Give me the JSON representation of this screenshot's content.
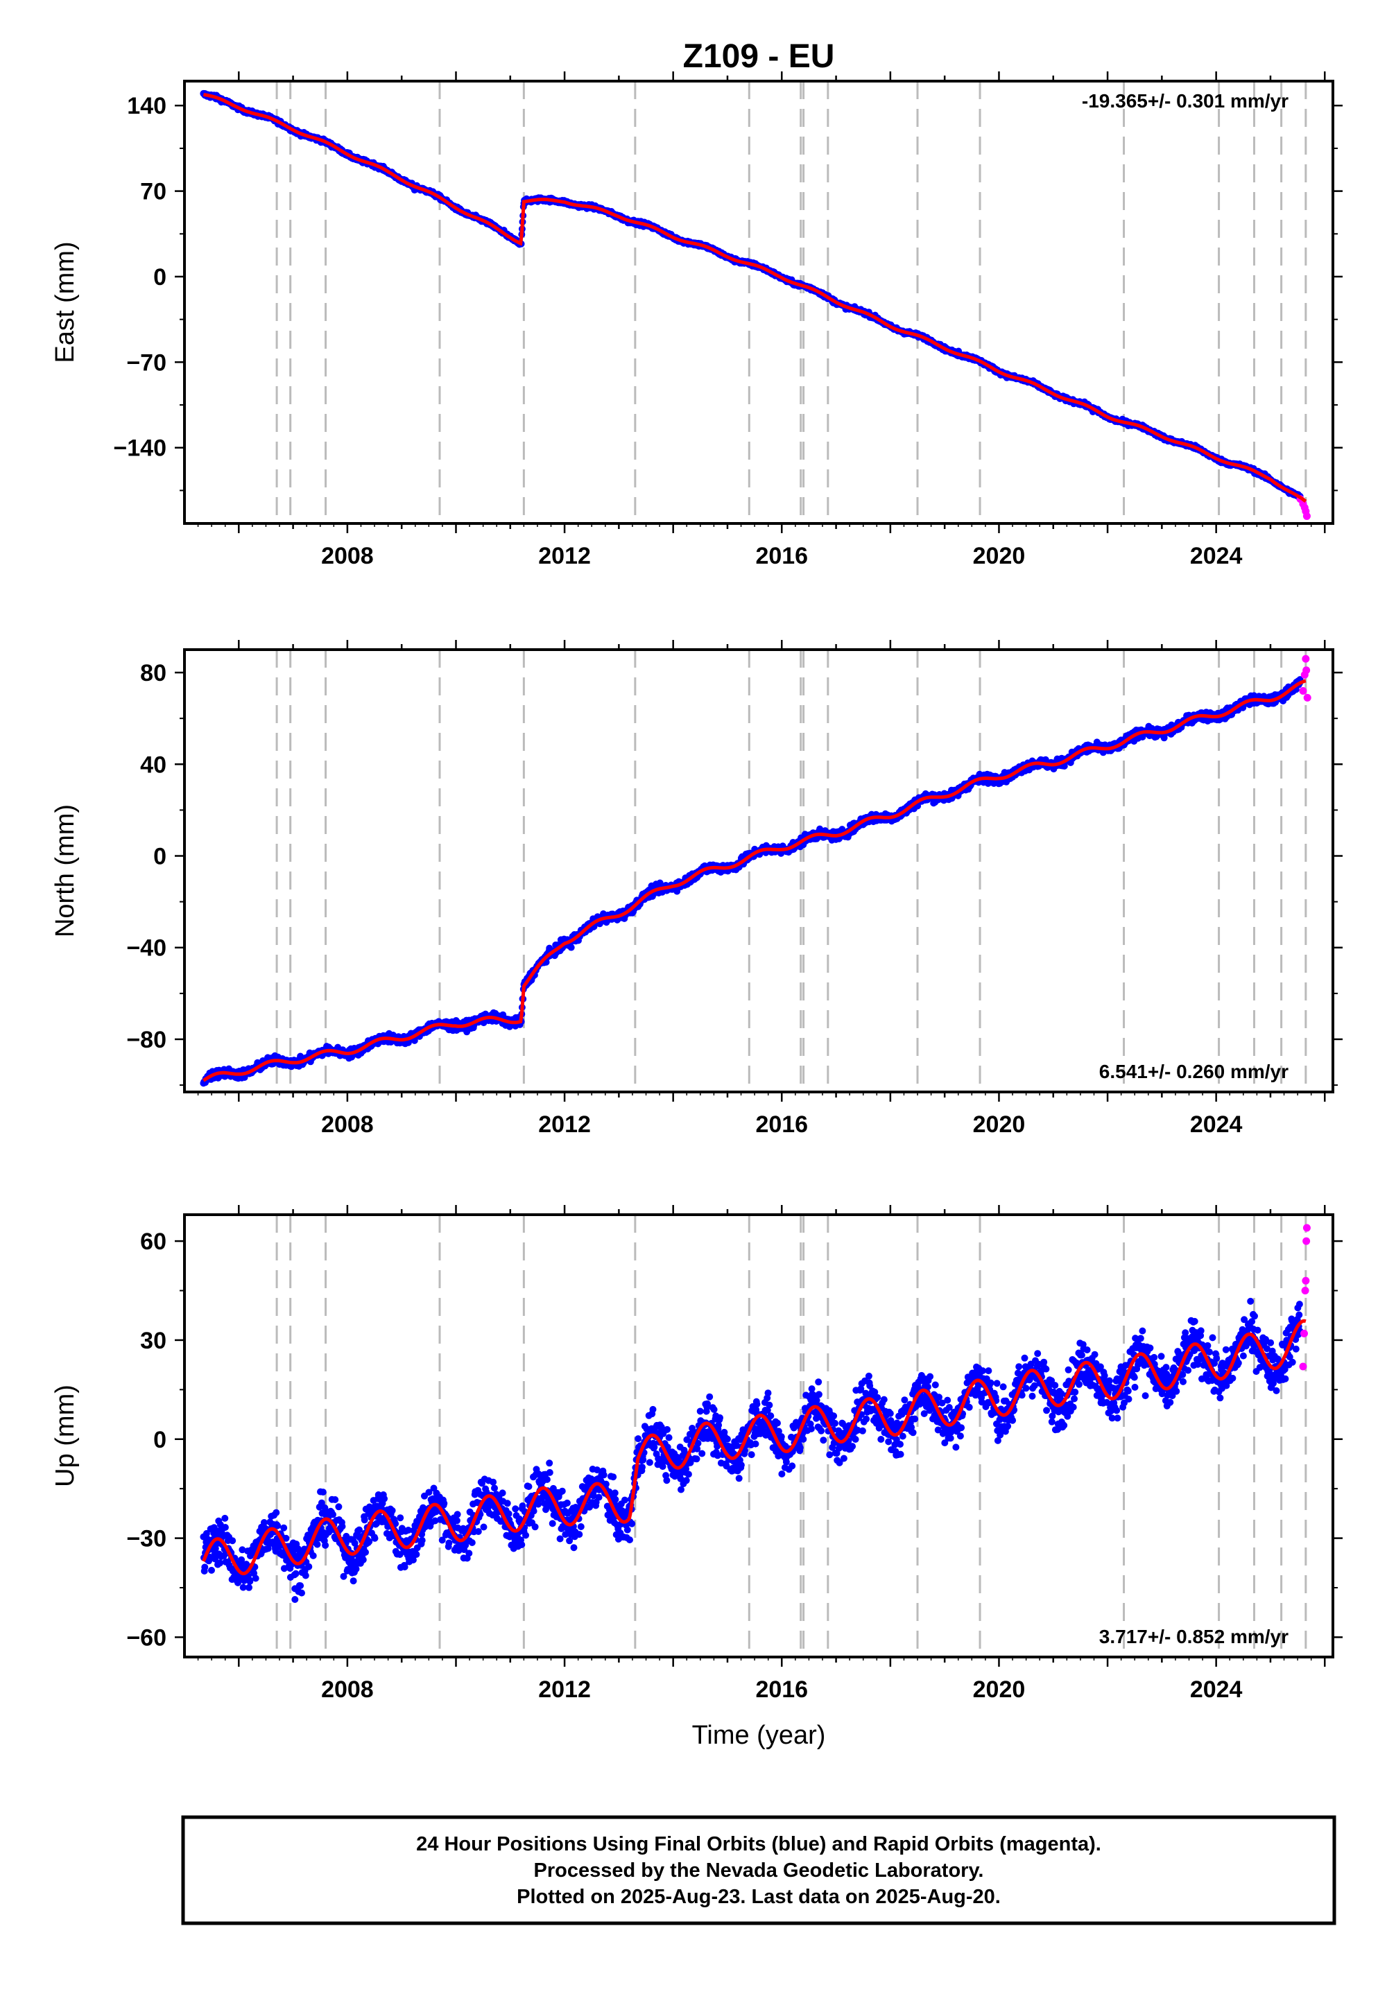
{
  "title": "Z109 - EU",
  "xlabel": "Time (year)",
  "xticks": [
    "2008",
    "2012",
    "2016",
    "2020",
    "2024"
  ],
  "colors": {
    "final": "#0000ff",
    "rapid": "#ff00ff",
    "model": "#ff0000",
    "event": "#bbbbbb"
  },
  "chart_data": [
    {
      "type": "scatter",
      "component": "east",
      "ylabel": "East (mm)",
      "yticks": [
        "140",
        "70",
        "0",
        "−70",
        "−140"
      ],
      "ytick_values": [
        140,
        70,
        0,
        -70,
        -140
      ],
      "ylim": [
        -202,
        160
      ],
      "xlim": [
        2005.0,
        2026.15
      ],
      "rate_text": "-19.365+/- 0.301 mm/yr",
      "rate_position": "top-right",
      "event_lines": [
        2006.7,
        2006.95,
        2007.6,
        2009.7,
        2011.25,
        2013.3,
        2015.4,
        2016.35,
        2016.4,
        2016.85,
        2018.5,
        2019.65,
        2022.3,
        2024.05,
        2024.7,
        2025.2,
        2025.65
      ],
      "trend": [
        [
          2005.35,
          149
        ],
        [
          2006.0,
          139
        ],
        [
          2007.0,
          121
        ],
        [
          2008.0,
          101
        ],
        [
          2009.0,
          80
        ],
        [
          2010.0,
          57
        ],
        [
          2011.2,
          28
        ],
        [
          2011.25,
          62
        ],
        [
          2012.0,
          62
        ],
        [
          2013.0,
          50
        ],
        [
          2014.0,
          33
        ],
        [
          2015.0,
          17
        ],
        [
          2016.0,
          0
        ],
        [
          2017.0,
          -20
        ],
        [
          2018.0,
          -40
        ],
        [
          2019.0,
          -58
        ],
        [
          2020.0,
          -77
        ],
        [
          2021.0,
          -95
        ],
        [
          2022.0,
          -114
        ],
        [
          2023.0,
          -130
        ],
        [
          2024.0,
          -148
        ],
        [
          2025.0,
          -165
        ],
        [
          2025.65,
          -185
        ]
      ],
      "rapid_points": [
        [
          2025.55,
          -182
        ],
        [
          2025.6,
          -186
        ],
        [
          2025.63,
          -189
        ],
        [
          2025.65,
          -192
        ],
        [
          2025.67,
          -196
        ]
      ]
    },
    {
      "type": "scatter",
      "component": "north",
      "ylabel": "North (mm)",
      "yticks": [
        "80",
        "40",
        "0",
        "−40",
        "−80"
      ],
      "ytick_values": [
        80,
        40,
        0,
        -40,
        -80
      ],
      "ylim": [
        -103,
        90
      ],
      "xlim": [
        2005.0,
        2026.15
      ],
      "rate_text": "6.541+/- 0.260 mm/yr",
      "rate_position": "bottom-right",
      "event_lines": [
        2006.7,
        2006.95,
        2007.6,
        2009.7,
        2011.25,
        2013.3,
        2015.4,
        2016.35,
        2016.4,
        2016.85,
        2018.5,
        2019.65,
        2022.3,
        2024.05,
        2024.7,
        2025.2,
        2025.65
      ],
      "trend": [
        [
          2005.35,
          -98
        ],
        [
          2006.0,
          -94
        ],
        [
          2007.0,
          -89
        ],
        [
          2008.0,
          -85
        ],
        [
          2009.0,
          -79
        ],
        [
          2010.0,
          -73
        ],
        [
          2011.2,
          -71
        ],
        [
          2011.25,
          -56
        ],
        [
          2012.0,
          -37
        ],
        [
          2013.0,
          -25
        ],
        [
          2014.0,
          -12
        ],
        [
          2015.0,
          -4
        ],
        [
          2016.0,
          4
        ],
        [
          2017.0,
          10
        ],
        [
          2018.0,
          18
        ],
        [
          2019.0,
          27
        ],
        [
          2020.0,
          35
        ],
        [
          2021.0,
          41
        ],
        [
          2022.0,
          48
        ],
        [
          2023.0,
          55
        ],
        [
          2024.0,
          62
        ],
        [
          2025.0,
          69
        ],
        [
          2025.65,
          75
        ]
      ],
      "rapid_points": [
        [
          2025.6,
          72
        ],
        [
          2025.63,
          79
        ],
        [
          2025.65,
          86
        ],
        [
          2025.66,
          81
        ],
        [
          2025.68,
          69
        ]
      ]
    },
    {
      "type": "scatter",
      "component": "up",
      "ylabel": "Up (mm)",
      "yticks": [
        "60",
        "30",
        "0",
        "−30",
        "−60"
      ],
      "ytick_values": [
        60,
        30,
        0,
        -30,
        -60
      ],
      "ylim": [
        -66,
        68
      ],
      "xlim": [
        2005.0,
        2026.15
      ],
      "rate_text": "3.717+/- 0.852 mm/yr",
      "rate_position": "bottom-right",
      "event_lines": [
        2006.7,
        2006.95,
        2007.6,
        2009.7,
        2011.25,
        2013.3,
        2015.4,
        2016.35,
        2016.4,
        2016.85,
        2018.5,
        2019.65,
        2022.3,
        2024.05,
        2024.7,
        2025.2,
        2025.65
      ],
      "trend": [
        [
          2005.35,
          -37
        ],
        [
          2006.0,
          -35
        ],
        [
          2007.0,
          -32
        ],
        [
          2008.0,
          -29
        ],
        [
          2009.0,
          -27
        ],
        [
          2010.0,
          -25
        ],
        [
          2011.0,
          -22
        ],
        [
          2012.0,
          -20
        ],
        [
          2013.2,
          -19
        ],
        [
          2013.35,
          -6
        ],
        [
          2014.0,
          -3
        ],
        [
          2015.0,
          0
        ],
        [
          2016.0,
          2
        ],
        [
          2017.0,
          5
        ],
        [
          2018.0,
          7
        ],
        [
          2019.0,
          10
        ],
        [
          2020.0,
          13
        ],
        [
          2021.0,
          16
        ],
        [
          2022.0,
          18
        ],
        [
          2023.0,
          21
        ],
        [
          2024.0,
          24
        ],
        [
          2025.0,
          27
        ],
        [
          2025.65,
          30
        ]
      ],
      "seasonal_amplitude": 6,
      "scatter_spread": 7,
      "rapid_points": [
        [
          2025.6,
          22
        ],
        [
          2025.62,
          32
        ],
        [
          2025.64,
          45
        ],
        [
          2025.65,
          48
        ],
        [
          2025.66,
          60
        ],
        [
          2025.67,
          64
        ]
      ]
    }
  ],
  "footer": {
    "line1": "24 Hour Positions Using Final Orbits (blue) and Rapid Orbits (magenta).",
    "line2": "Processed by the Nevada Geodetic Laboratory.",
    "line3": "Plotted on 2025-Aug-23. Last data on 2025-Aug-20."
  }
}
